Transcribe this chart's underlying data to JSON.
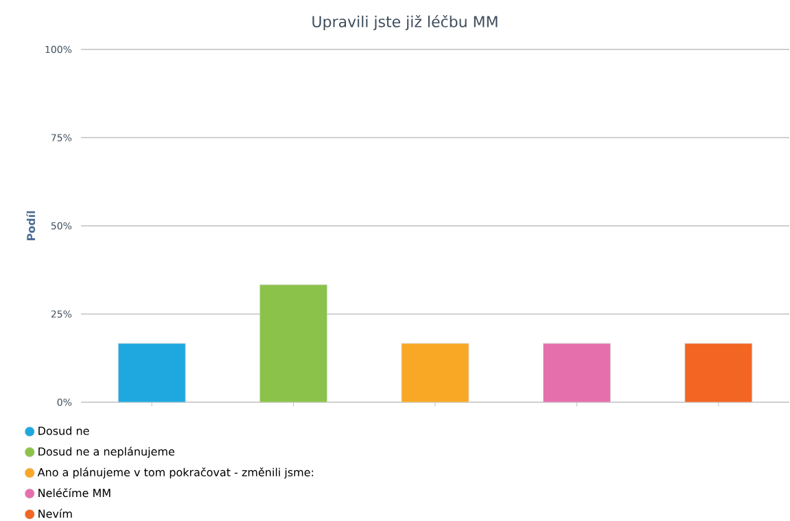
{
  "chart_data": {
    "type": "bar",
    "title": "Upravili jste již léčbu MM",
    "ylabel": "Podíl",
    "categories": [
      null,
      null,
      null,
      null,
      null
    ],
    "series": [
      {
        "name": "Dosud ne",
        "color": "#1fa8e0",
        "values": [
          16.7,
          null,
          null,
          null,
          null
        ]
      },
      {
        "name": "Dosud ne a neplánujeme",
        "color": "#8bc34a",
        "values": [
          null,
          33.3,
          null,
          null,
          null
        ]
      },
      {
        "name": "Ano a plánujeme v tom pokračovat - změnili jsme:",
        "color": "#f9a825",
        "values": [
          null,
          null,
          16.7,
          null,
          null
        ]
      },
      {
        "name": "Neléčíme MM",
        "color": "#e56fad",
        "values": [
          null,
          null,
          null,
          16.7,
          null
        ]
      },
      {
        "name": "Nevím",
        "color": "#f26522",
        "values": [
          null,
          null,
          null,
          null,
          16.7
        ]
      }
    ],
    "ylim": [
      0,
      100
    ],
    "yticks": [
      {
        "value": 0,
        "label": "0%"
      },
      {
        "value": 25,
        "label": "25%"
      },
      {
        "value": 50,
        "label": "50%"
      },
      {
        "value": 75,
        "label": "75%"
      },
      {
        "value": 100,
        "label": "100%"
      }
    ],
    "grid": "y",
    "legend": "bottom left"
  }
}
